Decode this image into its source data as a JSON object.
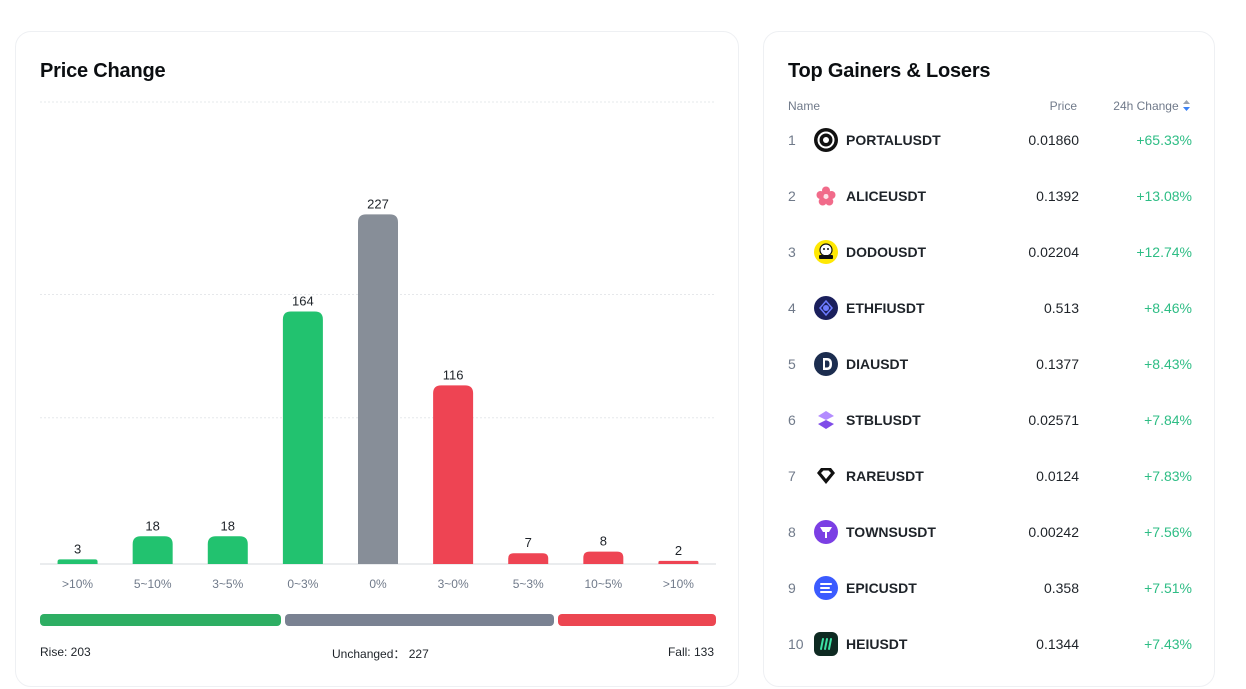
{
  "price_change": {
    "title": "Price Change",
    "rise_label": "Rise: 203",
    "unchanged_label": "Unchanged： 227",
    "fall_label": "Fall: 133",
    "summary": {
      "rise": 203,
      "unchanged": 227,
      "fall": 133
    },
    "colors": {
      "rise": "#22c26f",
      "unchanged": "#878e98",
      "fall": "#ee4453",
      "rise_bar": "#2eae63",
      "unchanged_bar": "#7a8292",
      "fall_bar": "#ec4651"
    }
  },
  "chart_data": {
    "type": "bar",
    "title": "Price Change",
    "xlabel": "",
    "ylabel": "",
    "categories": [
      ">10%",
      "5~10%",
      "3~5%",
      "0~3%",
      "0%",
      "3~0%",
      "5~3%",
      "10~5%",
      ">10%"
    ],
    "values": [
      3,
      18,
      18,
      164,
      227,
      116,
      7,
      8,
      2
    ],
    "bar_groups": [
      "rise",
      "rise",
      "rise",
      "rise",
      "unchanged",
      "fall",
      "fall",
      "fall",
      "fall"
    ],
    "ylim": [
      0,
      300
    ],
    "grid": true
  },
  "gainers": {
    "title": "Top Gainers & Losers",
    "headers": {
      "name": "Name",
      "price": "Price",
      "change": "24h Change"
    },
    "rows": [
      {
        "rank": "1",
        "symbol": "PORTALUSDT",
        "price": "0.01860",
        "change": "+65.33%",
        "icon": "portal-icon"
      },
      {
        "rank": "2",
        "symbol": "ALICEUSDT",
        "price": "0.1392",
        "change": "+13.08%",
        "icon": "alice-icon"
      },
      {
        "rank": "3",
        "symbol": "DODOUSDT",
        "price": "0.02204",
        "change": "+12.74%",
        "icon": "dodo-icon"
      },
      {
        "rank": "4",
        "symbol": "ETHFIUSDT",
        "price": "0.513",
        "change": "+8.46%",
        "icon": "ethfi-icon"
      },
      {
        "rank": "5",
        "symbol": "DIAUSDT",
        "price": "0.1377",
        "change": "+8.43%",
        "icon": "dia-icon"
      },
      {
        "rank": "6",
        "symbol": "STBLUSDT",
        "price": "0.02571",
        "change": "+7.84%",
        "icon": "stbl-icon"
      },
      {
        "rank": "7",
        "symbol": "RAREUSDT",
        "price": "0.0124",
        "change": "+7.83%",
        "icon": "rare-icon"
      },
      {
        "rank": "8",
        "symbol": "TOWNSUSDT",
        "price": "0.00242",
        "change": "+7.56%",
        "icon": "towns-icon"
      },
      {
        "rank": "9",
        "symbol": "EPICUSDT",
        "price": "0.358",
        "change": "+7.51%",
        "icon": "epic-icon"
      },
      {
        "rank": "10",
        "symbol": "HEIUSDT",
        "price": "0.1344",
        "change": "+7.43%",
        "icon": "hei-icon"
      }
    ]
  }
}
